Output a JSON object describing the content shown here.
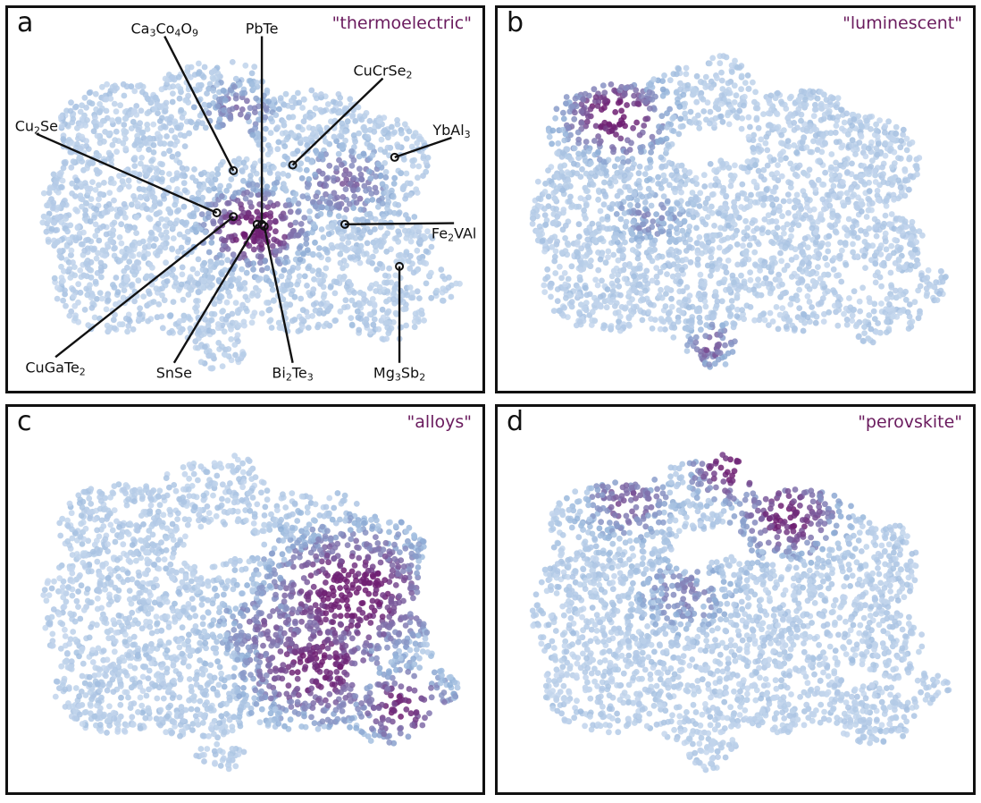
{
  "chart_data": [
    {
      "type": "scatter",
      "panel_letter": "a",
      "keyword": "\"thermoelectric\"",
      "highlight_regions": [
        {
          "cx": 0.52,
          "cy": 0.55,
          "r": 0.1,
          "strength": 1.0
        },
        {
          "cx": 0.72,
          "cy": 0.42,
          "r": 0.1,
          "strength": 0.55
        },
        {
          "cx": 0.48,
          "cy": 0.2,
          "r": 0.08,
          "strength": 0.45
        }
      ],
      "annotations": [
        {
          "text": "Ca3Co4O9",
          "base": "Ca",
          "parts": [
            [
              "Ca",
              ""
            ],
            [
              "3",
              "sub"
            ],
            [
              "Co",
              ""
            ],
            [
              "4",
              "sub"
            ],
            [
              "O",
              ""
            ],
            [
              "9",
              "sub"
            ]
          ],
          "point": [
            0.475,
            0.425
          ],
          "label": [
            0.33,
            0.055
          ]
        },
        {
          "text": "PbTe",
          "parts": [
            [
              "PbTe",
              ""
            ]
          ],
          "point": [
            0.535,
            0.565
          ],
          "label": [
            0.535,
            0.055
          ]
        },
        {
          "text": "CuCrSe2",
          "parts": [
            [
              "CuCrSe",
              ""
            ],
            [
              "2",
              "sub"
            ]
          ],
          "point": [
            0.6,
            0.41
          ],
          "label": [
            0.79,
            0.165
          ]
        },
        {
          "text": "Cu2Se",
          "parts": [
            [
              "Cu",
              ""
            ],
            [
              "2",
              "sub"
            ],
            [
              "Se",
              ""
            ]
          ],
          "point": [
            0.44,
            0.535
          ],
          "label": [
            0.06,
            0.31
          ]
        },
        {
          "text": "YbAl3",
          "parts": [
            [
              "YbAl",
              ""
            ],
            [
              "3",
              "sub"
            ]
          ],
          "point": [
            0.815,
            0.39
          ],
          "label": [
            0.935,
            0.32
          ]
        },
        {
          "text": "Fe2VAl",
          "parts": [
            [
              "Fe",
              ""
            ],
            [
              "2",
              "sub"
            ],
            [
              "VAl",
              ""
            ]
          ],
          "point": [
            0.71,
            0.565
          ],
          "label": [
            0.94,
            0.59
          ]
        },
        {
          "text": "Mg3Sb2",
          "parts": [
            [
              "Mg",
              ""
            ],
            [
              "3",
              "sub"
            ],
            [
              "Sb",
              ""
            ],
            [
              "2",
              "sub"
            ]
          ],
          "point": [
            0.825,
            0.675
          ],
          "label": [
            0.825,
            0.955
          ]
        },
        {
          "text": "CuGaTe2",
          "parts": [
            [
              "CuGaTe",
              ""
            ],
            [
              "2",
              "sub"
            ]
          ],
          "point": [
            0.475,
            0.545
          ],
          "label": [
            0.1,
            0.94
          ]
        },
        {
          "text": "SnSe",
          "parts": [
            [
              "SnSe",
              ""
            ]
          ],
          "point": [
            0.525,
            0.565
          ],
          "label": [
            0.35,
            0.955
          ]
        },
        {
          "text": "Bi2Te3",
          "parts": [
            [
              "Bi",
              ""
            ],
            [
              "2",
              "sub"
            ],
            [
              "Te",
              ""
            ],
            [
              "3",
              "sub"
            ]
          ],
          "point": [
            0.54,
            0.57
          ],
          "label": [
            0.6,
            0.955
          ]
        }
      ]
    },
    {
      "type": "scatter",
      "panel_letter": "b",
      "keyword": "\"luminescent\"",
      "highlight_regions": [
        {
          "cx": 0.22,
          "cy": 0.22,
          "r": 0.1,
          "strength": 1.0
        },
        {
          "cx": 0.44,
          "cy": 0.9,
          "r": 0.06,
          "strength": 0.6
        },
        {
          "cx": 0.3,
          "cy": 0.52,
          "r": 0.08,
          "strength": 0.35
        }
      ],
      "annotations": []
    },
    {
      "type": "scatter",
      "panel_letter": "c",
      "keyword": "\"alloys\"",
      "highlight_regions": [
        {
          "cx": 0.74,
          "cy": 0.45,
          "r": 0.16,
          "strength": 1.0
        },
        {
          "cx": 0.66,
          "cy": 0.66,
          "r": 0.14,
          "strength": 0.9
        },
        {
          "cx": 0.86,
          "cy": 0.78,
          "r": 0.1,
          "strength": 0.85
        },
        {
          "cx": 0.55,
          "cy": 0.55,
          "r": 0.1,
          "strength": 0.55
        }
      ],
      "annotations": []
    },
    {
      "type": "scatter",
      "panel_letter": "d",
      "keyword": "\"perovskite\"",
      "highlight_regions": [
        {
          "cx": 0.49,
          "cy": 0.08,
          "r": 0.08,
          "strength": 1.0
        },
        {
          "cx": 0.62,
          "cy": 0.22,
          "r": 0.1,
          "strength": 0.9
        },
        {
          "cx": 0.25,
          "cy": 0.18,
          "r": 0.09,
          "strength": 0.6
        },
        {
          "cx": 0.38,
          "cy": 0.45,
          "r": 0.1,
          "strength": 0.4
        }
      ],
      "annotations": []
    }
  ],
  "colors": {
    "low": "#c6d8ee",
    "mid": "#8fb0d8",
    "high": "#6e1f72",
    "keyword": "#6a1b5e",
    "frame": "#111111"
  }
}
